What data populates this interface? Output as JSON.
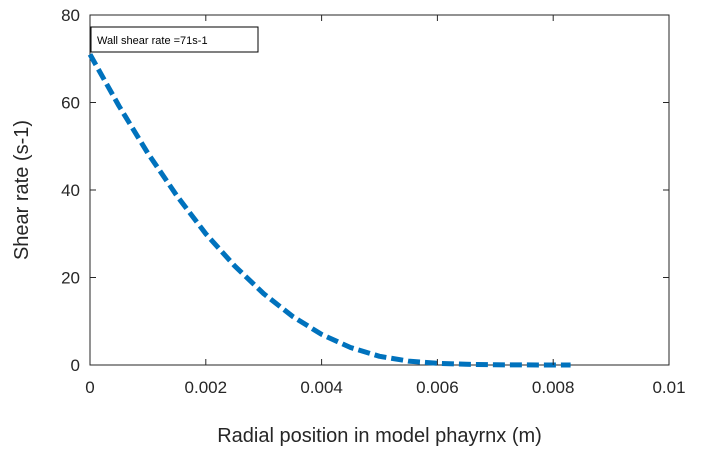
{
  "chart_data": {
    "type": "line",
    "title": "",
    "xlabel": "Radial position in model phayrnx (m)",
    "ylabel": "Shear rate (s-1)",
    "xlim": [
      0,
      0.01
    ],
    "ylim": [
      0,
      80
    ],
    "x_ticks": [
      0,
      0.002,
      0.004,
      0.006,
      0.008,
      0.01
    ],
    "x_tick_labels": [
      "0",
      "0.002",
      "0.004",
      "0.006",
      "0.008",
      "0.01"
    ],
    "y_ticks": [
      0,
      20,
      40,
      60,
      80
    ],
    "y_tick_labels": [
      "0",
      "20",
      "40",
      "60",
      "80"
    ],
    "grid": false,
    "line_style": "dashed",
    "colors": {
      "series": "#0072BD",
      "axes": "#262626"
    },
    "series": [
      {
        "x": [
          0,
          0.0005,
          0.001,
          0.0015,
          0.002,
          0.0025,
          0.003,
          0.0035,
          0.004,
          0.0045,
          0.005,
          0.0055,
          0.006,
          0.0065,
          0.007,
          0.0075,
          0.008,
          0.0083
        ],
        "values": [
          71,
          59.2,
          48.4,
          38.7,
          30.0,
          22.6,
          16.3,
          11.1,
          7.0,
          4.0,
          2.0,
          0.9,
          0.4,
          0.15,
          0.05,
          0.02,
          0.0,
          0.0
        ]
      }
    ],
    "annotations": [
      {
        "text": "Wall shear rate =71s-1",
        "position": "top-left"
      }
    ]
  }
}
